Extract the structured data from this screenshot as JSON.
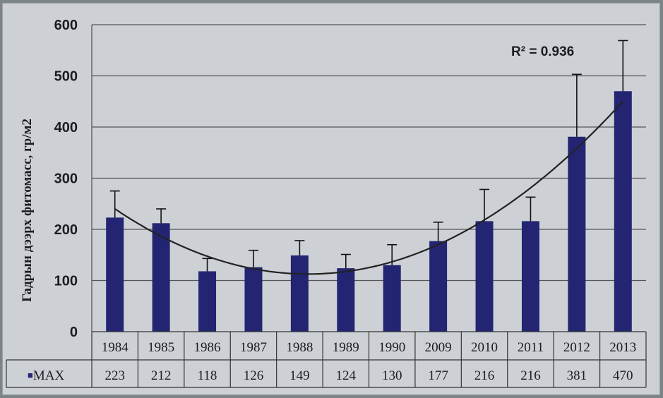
{
  "chart_data": {
    "type": "bar",
    "categories": [
      "1984",
      "1985",
      "1986",
      "1987",
      "1988",
      "1989",
      "1990",
      "2009",
      "2010",
      "2011",
      "2012",
      "2013"
    ],
    "series": [
      {
        "name": "MAX",
        "values": [
          223,
          212,
          118,
          126,
          149,
          124,
          130,
          177,
          216,
          216,
          381,
          470
        ],
        "error_plus": [
          52,
          28,
          25,
          33,
          29,
          27,
          40,
          37,
          62,
          47,
          122,
          99
        ],
        "color": "#232472"
      }
    ],
    "table_values": [
      "223",
      "212",
      "118",
      "126",
      "149",
      "124",
      "130",
      "177",
      "216",
      "216",
      "381",
      "470"
    ],
    "legend_marker": "■",
    "ylabel": "Гадрын дээрх фитомасс, гр/м2",
    "ylim": [
      0,
      600
    ],
    "yticks": [
      0,
      100,
      200,
      300,
      400,
      500,
      600
    ],
    "grid": true,
    "trendline": {
      "type": "polynomial",
      "r2_label": "R² = 0.936"
    }
  }
}
